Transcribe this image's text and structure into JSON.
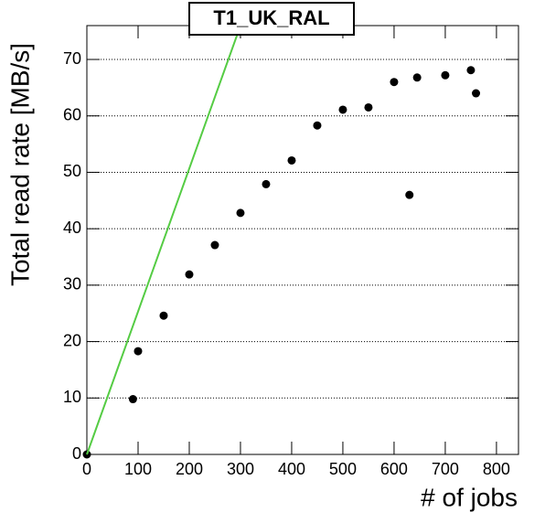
{
  "chart_data": {
    "type": "scatter",
    "title": "T1_UK_RAL",
    "x_label": "# of jobs",
    "y_label": "Total read rate [MB/s]",
    "xlim": [
      0,
      843
    ],
    "ylim": [
      0,
      76
    ],
    "xticks": [
      0,
      100,
      200,
      300,
      400,
      500,
      600,
      700,
      800
    ],
    "yticks": [
      0,
      10,
      20,
      30,
      40,
      50,
      60,
      70
    ],
    "grid": true,
    "series": [
      {
        "kind": "points",
        "color": "#000000",
        "x": [
          0,
          90,
          100,
          150,
          200,
          250,
          300,
          350,
          400,
          450,
          500,
          550,
          600,
          630,
          645,
          700,
          750,
          760
        ],
        "values": [
          0,
          9.8,
          18.3,
          24.6,
          31.9,
          37.1,
          42.8,
          47.9,
          52.1,
          58.3,
          61.1,
          61.5,
          66,
          46,
          66.8,
          67.2,
          68.1,
          64
        ]
      },
      {
        "kind": "line",
        "color": "#55cc44",
        "x": [
          0,
          300
        ],
        "values": [
          0,
          76
        ]
      }
    ]
  }
}
